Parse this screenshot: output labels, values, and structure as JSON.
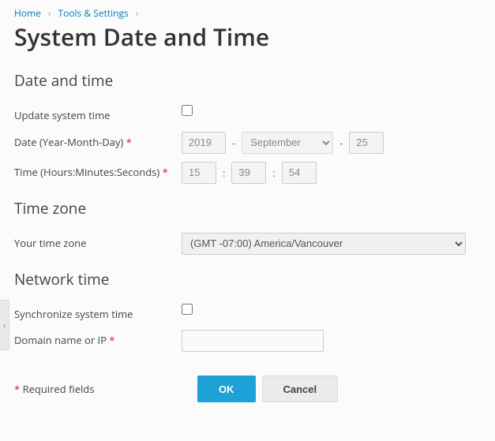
{
  "breadcrumb": {
    "home": "Home",
    "tools": "Tools & Settings"
  },
  "page_title": "System Date and Time",
  "sections": {
    "datetime_heading": "Date and time",
    "timezone_heading": "Time zone",
    "network_heading": "Network time"
  },
  "labels": {
    "update_system_time": "Update system time",
    "date": "Date (Year-Month-Day)",
    "time": "Time (Hours:Minutes:Seconds)",
    "your_timezone": "Your time zone",
    "sync_system_time": "Synchronize system time",
    "domain_or_ip": "Domain name or IP",
    "required_fields": "Required fields"
  },
  "values": {
    "year": "2019",
    "month": "September",
    "day": "25",
    "hours": "15",
    "minutes": "39",
    "seconds": "54",
    "timezone": "(GMT -07:00) America/Vancouver",
    "domain_or_ip": ""
  },
  "buttons": {
    "ok": "OK",
    "cancel": "Cancel"
  },
  "symbols": {
    "asterisk": "*",
    "dash": "-",
    "colon": ":",
    "chevron_right": "›",
    "chevron_left": "‹"
  },
  "colors": {
    "link": "#007eb0",
    "heading": "#333",
    "text": "#444",
    "required": "#d02020",
    "primary_btn_bg": "#1ea1d6",
    "primary_btn_text": "#ffffff",
    "default_btn_bg": "#ebebeb",
    "input_disabled_bg": "#f4f4f4",
    "page_bg": "#fbfbfb"
  }
}
